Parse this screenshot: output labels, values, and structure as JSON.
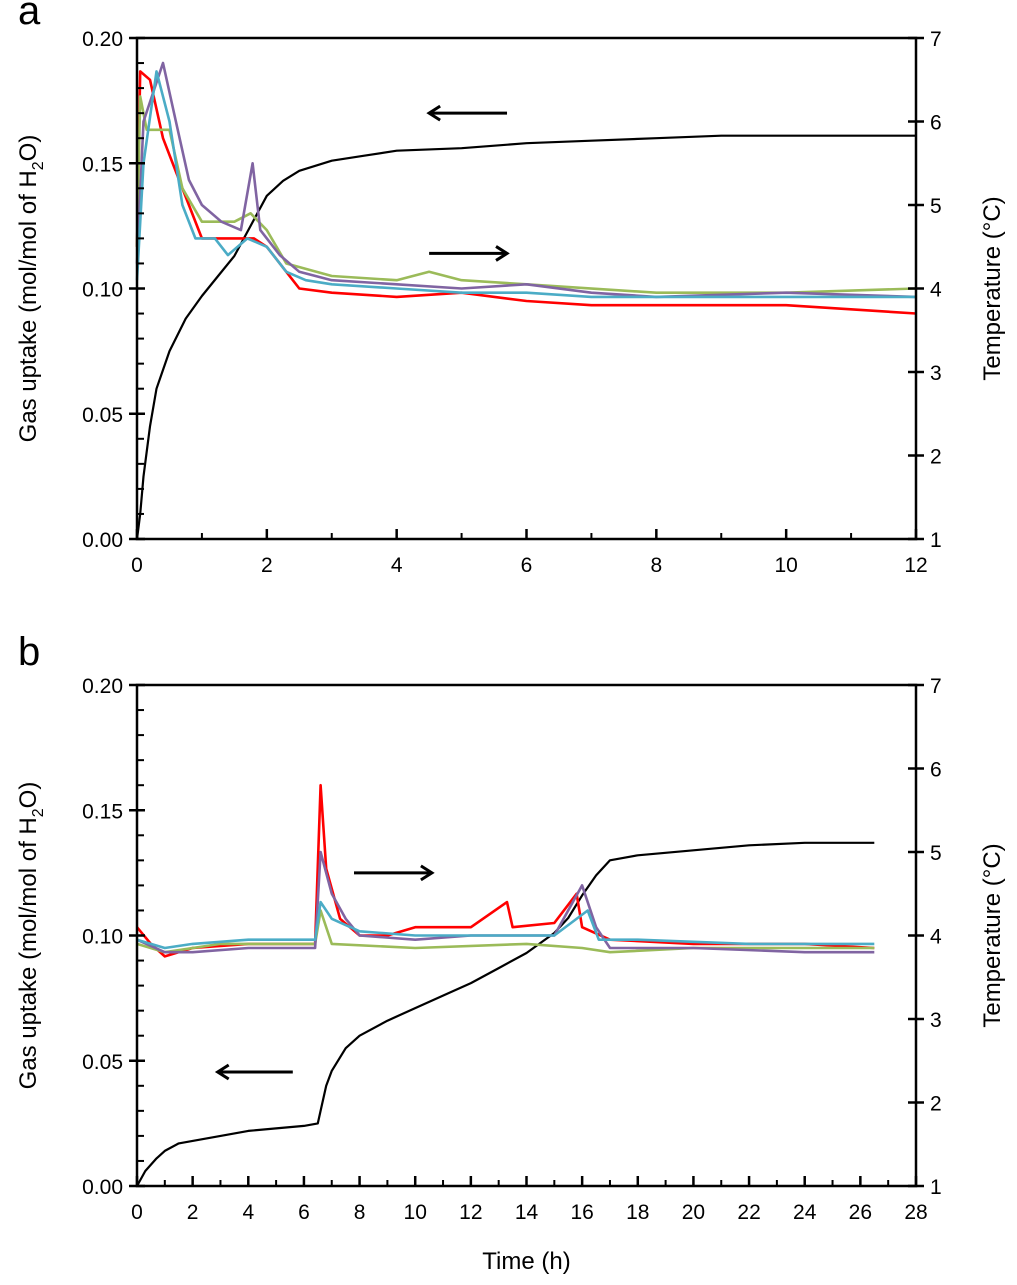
{
  "chart_data": [
    {
      "panel_label": "a",
      "type": "line",
      "xlabel": "",
      "ylabel_left": "Gas uptake (mol/mol of H2O)",
      "ylabel_right": "Temperature (°C)",
      "xlim": [
        0,
        12
      ],
      "ylim_left": [
        0,
        0.2
      ],
      "ylim_right": [
        1,
        7
      ],
      "x_ticks": [
        "0",
        "2",
        "4",
        "6",
        "8",
        "10",
        "12"
      ],
      "y_left_ticks": [
        "0.00",
        "0.05",
        "0.10",
        "0.15",
        "0.20"
      ],
      "y_right_ticks": [
        "1",
        "2",
        "3",
        "4",
        "5",
        "6",
        "7"
      ],
      "grid": false,
      "arrows": [
        {
          "direction": "left",
          "axis": "left",
          "x_from": 5.7,
          "x_to": 4.5,
          "y": 0.17
        },
        {
          "direction": "right",
          "axis": "right",
          "x_from": 4.5,
          "x_to": 5.7,
          "y": 4.42
        }
      ],
      "series": [
        {
          "axis": "left",
          "color": "#000000",
          "points": [
            [
              0,
              0
            ],
            [
              0.05,
              0.01
            ],
            [
              0.1,
              0.025
            ],
            [
              0.2,
              0.045
            ],
            [
              0.3,
              0.06
            ],
            [
              0.5,
              0.075
            ],
            [
              0.75,
              0.088
            ],
            [
              1,
              0.097
            ],
            [
              1.25,
              0.105
            ],
            [
              1.5,
              0.113
            ],
            [
              1.75,
              0.125
            ],
            [
              2,
              0.137
            ],
            [
              2.25,
              0.143
            ],
            [
              2.5,
              0.147
            ],
            [
              3,
              0.151
            ],
            [
              3.5,
              0.153
            ],
            [
              4,
              0.155
            ],
            [
              5,
              0.156
            ],
            [
              6,
              0.158
            ],
            [
              7,
              0.159
            ],
            [
              8,
              0.16
            ],
            [
              9,
              0.161
            ],
            [
              12,
              0.161
            ]
          ]
        },
        {
          "axis": "right",
          "color": "#ff0000",
          "points": [
            [
              0,
              4.5
            ],
            [
              0.05,
              6.6
            ],
            [
              0.2,
              6.5
            ],
            [
              0.4,
              5.8
            ],
            [
              0.6,
              5.4
            ],
            [
              0.8,
              5.0
            ],
            [
              1,
              4.6
            ],
            [
              1.2,
              4.6
            ],
            [
              1.5,
              4.6
            ],
            [
              1.8,
              4.6
            ],
            [
              2,
              4.5
            ],
            [
              2.3,
              4.2
            ],
            [
              2.5,
              4.0
            ],
            [
              3,
              3.95
            ],
            [
              4,
              3.9
            ],
            [
              5,
              3.95
            ],
            [
              6,
              3.85
            ],
            [
              7,
              3.8
            ],
            [
              8,
              3.8
            ],
            [
              10,
              3.8
            ],
            [
              12,
              3.7
            ]
          ]
        },
        {
          "axis": "right",
          "color": "#9bbb59",
          "points": [
            [
              0,
              4.5
            ],
            [
              0.05,
              6.3
            ],
            [
              0.15,
              5.9
            ],
            [
              0.3,
              5.9
            ],
            [
              0.5,
              5.9
            ],
            [
              0.7,
              5.2
            ],
            [
              1,
              4.8
            ],
            [
              1.5,
              4.8
            ],
            [
              1.75,
              4.9
            ],
            [
              2,
              4.7
            ],
            [
              2.3,
              4.3
            ],
            [
              3,
              4.15
            ],
            [
              4,
              4.1
            ],
            [
              4.5,
              4.2
            ],
            [
              5,
              4.1
            ],
            [
              6,
              4.05
            ],
            [
              8,
              3.95
            ],
            [
              10,
              3.95
            ],
            [
              12,
              4.0
            ]
          ]
        },
        {
          "axis": "right",
          "color": "#8064a2",
          "points": [
            [
              0,
              4.3
            ],
            [
              0.1,
              6.0
            ],
            [
              0.4,
              6.7
            ],
            [
              0.6,
              6.0
            ],
            [
              0.8,
              5.3
            ],
            [
              1,
              5.0
            ],
            [
              1.3,
              4.8
            ],
            [
              1.6,
              4.7
            ],
            [
              1.78,
              5.5
            ],
            [
              1.9,
              4.7
            ],
            [
              2.2,
              4.4
            ],
            [
              2.5,
              4.2
            ],
            [
              3,
              4.1
            ],
            [
              4,
              4.05
            ],
            [
              5,
              4.0
            ],
            [
              6,
              4.05
            ],
            [
              7,
              3.95
            ],
            [
              8,
              3.9
            ],
            [
              10,
              3.95
            ],
            [
              12,
              3.9
            ]
          ]
        },
        {
          "axis": "right",
          "color": "#4bacc6",
          "points": [
            [
              0,
              4.1
            ],
            [
              0.1,
              5.5
            ],
            [
              0.3,
              6.6
            ],
            [
              0.5,
              6.0
            ],
            [
              0.7,
              5.0
            ],
            [
              0.9,
              4.6
            ],
            [
              1.2,
              4.6
            ],
            [
              1.4,
              4.4
            ],
            [
              1.7,
              4.6
            ],
            [
              2,
              4.5
            ],
            [
              2.3,
              4.2
            ],
            [
              2.6,
              4.1
            ],
            [
              3,
              4.05
            ],
            [
              4,
              4.0
            ],
            [
              5,
              3.95
            ],
            [
              6,
              3.95
            ],
            [
              7,
              3.9
            ],
            [
              8,
              3.9
            ],
            [
              10,
              3.9
            ],
            [
              12,
              3.9
            ]
          ]
        }
      ]
    },
    {
      "panel_label": "b",
      "type": "line",
      "xlabel": "Time (h)",
      "ylabel_left": "Gas uptake (mol/mol of H2O)",
      "ylabel_right": "Temperature (°C)",
      "xlim": [
        0,
        28
      ],
      "ylim_left": [
        0,
        0.2
      ],
      "ylim_right": [
        1,
        7
      ],
      "x_ticks": [
        "0",
        "2",
        "4",
        "6",
        "8",
        "10",
        "12",
        "14",
        "16",
        "18",
        "20",
        "22",
        "24",
        "26",
        "28"
      ],
      "y_left_ticks": [
        "0.00",
        "0.05",
        "0.10",
        "0.15",
        "0.20"
      ],
      "y_right_ticks": [
        "1",
        "2",
        "3",
        "4",
        "5",
        "6",
        "7"
      ],
      "grid": false,
      "arrows": [
        {
          "direction": "right",
          "axis": "left",
          "x_from": 7.8,
          "x_to": 10.6,
          "y": 0.125
        },
        {
          "direction": "left",
          "axis": "left",
          "x_from": 5.6,
          "x_to": 2.9,
          "y": 0.0455
        }
      ],
      "series": [
        {
          "axis": "left",
          "color": "#000000",
          "points": [
            [
              0,
              0
            ],
            [
              0.3,
              0.006
            ],
            [
              0.7,
              0.011
            ],
            [
              1,
              0.014
            ],
            [
              1.5,
              0.017
            ],
            [
              2,
              0.018
            ],
            [
              3,
              0.02
            ],
            [
              4,
              0.022
            ],
            [
              5,
              0.023
            ],
            [
              6,
              0.024
            ],
            [
              6.5,
              0.025
            ],
            [
              6.6,
              0.03
            ],
            [
              6.8,
              0.04
            ],
            [
              7,
              0.046
            ],
            [
              7.5,
              0.055
            ],
            [
              8,
              0.06
            ],
            [
              9,
              0.066
            ],
            [
              10,
              0.071
            ],
            [
              11,
              0.076
            ],
            [
              12,
              0.081
            ],
            [
              13,
              0.087
            ],
            [
              14,
              0.093
            ],
            [
              14.5,
              0.097
            ],
            [
              15,
              0.101
            ],
            [
              15.5,
              0.107
            ],
            [
              16,
              0.116
            ],
            [
              16.5,
              0.124
            ],
            [
              17,
              0.13
            ],
            [
              18,
              0.132
            ],
            [
              19,
              0.133
            ],
            [
              20,
              0.134
            ],
            [
              22,
              0.136
            ],
            [
              24,
              0.137
            ],
            [
              26.5,
              0.137
            ]
          ]
        },
        {
          "axis": "right",
          "color": "#ff0000",
          "points": [
            [
              0,
              4.1
            ],
            [
              0.5,
              3.9
            ],
            [
              1,
              3.75
            ],
            [
              2,
              3.85
            ],
            [
              4,
              3.9
            ],
            [
              6.4,
              3.9
            ],
            [
              6.6,
              5.8
            ],
            [
              6.8,
              4.8
            ],
            [
              7.3,
              4.2
            ],
            [
              8,
              4.0
            ],
            [
              9,
              4.0
            ],
            [
              10,
              4.1
            ],
            [
              12,
              4.1
            ],
            [
              13.3,
              4.4
            ],
            [
              13.5,
              4.1
            ],
            [
              15,
              4.15
            ],
            [
              15.8,
              4.5
            ],
            [
              16,
              4.1
            ],
            [
              17,
              3.95
            ],
            [
              20,
              3.9
            ],
            [
              24,
              3.9
            ],
            [
              26.5,
              3.85
            ]
          ]
        },
        {
          "axis": "right",
          "color": "#9bbb59",
          "points": [
            [
              0,
              3.9
            ],
            [
              1,
              3.8
            ],
            [
              3,
              3.9
            ],
            [
              6.4,
              3.9
            ],
            [
              6.6,
              4.3
            ],
            [
              7,
              3.9
            ],
            [
              10,
              3.85
            ],
            [
              14,
              3.9
            ],
            [
              16,
              3.85
            ],
            [
              17,
              3.8
            ],
            [
              20,
              3.85
            ],
            [
              26.5,
              3.85
            ]
          ]
        },
        {
          "axis": "right",
          "color": "#8064a2",
          "points": [
            [
              0,
              3.95
            ],
            [
              1,
              3.8
            ],
            [
              2,
              3.8
            ],
            [
              4,
              3.85
            ],
            [
              6.4,
              3.85
            ],
            [
              6.6,
              5.0
            ],
            [
              7,
              4.5
            ],
            [
              7.5,
              4.2
            ],
            [
              8,
              4.0
            ],
            [
              10,
              3.95
            ],
            [
              12,
              4.0
            ],
            [
              15,
              4.0
            ],
            [
              16,
              4.6
            ],
            [
              16.5,
              4.1
            ],
            [
              17,
              3.85
            ],
            [
              20,
              3.85
            ],
            [
              24,
              3.8
            ],
            [
              26.5,
              3.8
            ]
          ]
        },
        {
          "axis": "right",
          "color": "#4bacc6",
          "points": [
            [
              0,
              3.95
            ],
            [
              1,
              3.85
            ],
            [
              2,
              3.9
            ],
            [
              4,
              3.95
            ],
            [
              6.4,
              3.95
            ],
            [
              6.6,
              4.4
            ],
            [
              7,
              4.2
            ],
            [
              8,
              4.05
            ],
            [
              10,
              4.0
            ],
            [
              12,
              4.0
            ],
            [
              15,
              4.0
            ],
            [
              16.2,
              4.3
            ],
            [
              16.6,
              3.95
            ],
            [
              18,
              3.95
            ],
            [
              22,
              3.9
            ],
            [
              26.5,
              3.9
            ]
          ]
        }
      ]
    }
  ]
}
